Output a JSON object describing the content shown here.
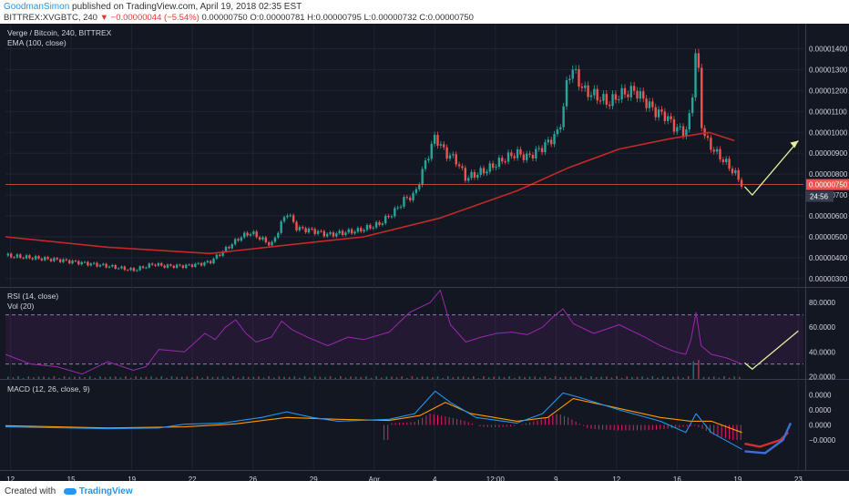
{
  "header": {
    "author": "GoodmanSimon",
    "published": "published on TradingView.com, April 19, 2018 02:35 EST",
    "symbol_line": "BITTREX:XVGBTC, 240",
    "change_text": "−0.00000044 (−5.54%)",
    "price": "0.00000750",
    "ohlc": "O:0.00000781 H:0.00000795 L:0.00000732 C:0.00000750"
  },
  "footer": {
    "created_with": "Created with",
    "brand": "TradingView"
  },
  "colors": {
    "bg": "#131722",
    "up": "#26a69a",
    "down": "#ef5350",
    "ema": "#c62828",
    "rsi": "#9c27b0",
    "macd": "#2196f3",
    "signal": "#ff9800",
    "hist": "#e91e63",
    "annotation": "#e6ee9c"
  },
  "chart_data": [
    {
      "type": "candlestick",
      "title": "Verge / Bitcoin, 240, BITTREX",
      "indicator": "EMA (100, close)",
      "ylim": [
        2.6e-06,
        1.52e-05
      ],
      "y_ticks": [
        "0.00001400",
        "0.00001300",
        "0.00001200",
        "0.00001100",
        "0.00001000",
        "0.00000900",
        "0.00000800",
        "0.00000700",
        "0.00000600",
        "0.00000500",
        "0.00000400",
        "0.00000300"
      ],
      "y_tick_values": [
        1.4e-05,
        1.3e-05,
        1.2e-05,
        1.1e-05,
        1e-05,
        9e-06,
        8e-06,
        7e-06,
        6e-06,
        5e-06,
        4e-06,
        3e-06
      ],
      "last_price_label": "0.00000750",
      "last_price": 7.5e-06,
      "countdown": "24:56",
      "x_ticks": [
        "12",
        "15",
        "19",
        "22",
        "26",
        "29",
        "Apr",
        "4",
        "12:00",
        "9",
        "12",
        "16",
        "19",
        "23"
      ],
      "close_path": [
        [
          0,
          4.1e-06
        ],
        [
          20,
          3.9e-06
        ],
        [
          40,
          3.6e-06
        ],
        [
          50,
          3.4e-06
        ],
        [
          58,
          3.7e-06
        ],
        [
          62,
          3.6e-06
        ],
        [
          70,
          3.6e-06
        ],
        [
          76,
          3.7e-06
        ],
        [
          80,
          3.8e-06
        ],
        [
          86,
          4.4e-06
        ],
        [
          92,
          5e-06
        ],
        [
          96,
          5.2e-06
        ],
        [
          100,
          4.9e-06
        ],
        [
          104,
          4.6e-06
        ],
        [
          110,
          6.2e-06
        ],
        [
          114,
          5.4e-06
        ],
        [
          120,
          5.3e-06
        ],
        [
          126,
          5.1e-06
        ],
        [
          132,
          5.2e-06
        ],
        [
          138,
          5.3e-06
        ],
        [
          146,
          5.6e-06
        ],
        [
          152,
          6.2e-06
        ],
        [
          156,
          6.8e-06
        ],
        [
          160,
          7e-06
        ],
        [
          164,
          8.5e-06
        ],
        [
          168,
          9.8e-06
        ],
        [
          172,
          9e-06
        ],
        [
          176,
          8.7e-06
        ],
        [
          180,
          7.8e-06
        ],
        [
          184,
          8e-06
        ],
        [
          188,
          8.2e-06
        ],
        [
          192,
          8.5e-06
        ],
        [
          196,
          8.8e-06
        ],
        [
          200,
          9e-06
        ],
        [
          204,
          8.8e-06
        ],
        [
          208,
          9.1e-06
        ],
        [
          212,
          9.5e-06
        ],
        [
          216,
          1e-05
        ],
        [
          218,
          1.1e-05
        ],
        [
          220,
          1.28e-05
        ],
        [
          222,
          1.3e-05
        ],
        [
          226,
          1.2e-05
        ],
        [
          230,
          1.18e-05
        ],
        [
          236,
          1.14e-05
        ],
        [
          240,
          1.18e-05
        ],
        [
          246,
          1.2e-05
        ],
        [
          250,
          1.15e-05
        ],
        [
          254,
          1.1e-05
        ],
        [
          258,
          1.08e-05
        ],
        [
          262,
          1.02e-05
        ],
        [
          266,
          1e-05
        ],
        [
          268,
          1.1e-05
        ],
        [
          270,
          1.41e-05
        ],
        [
          271,
          1.28e-05
        ],
        [
          272,
          1.05e-05
        ],
        [
          274,
          9.6e-06
        ],
        [
          278,
          9e-06
        ],
        [
          282,
          8.5e-06
        ],
        [
          286,
          7.9e-06
        ],
        [
          288,
          7.5e-06
        ]
      ],
      "ema": [
        [
          0,
          5e-06
        ],
        [
          40,
          4.5e-06
        ],
        [
          80,
          4.2e-06
        ],
        [
          110,
          4.6e-06
        ],
        [
          140,
          5e-06
        ],
        [
          170,
          5.9e-06
        ],
        [
          200,
          7.2e-06
        ],
        [
          220,
          8.3e-06
        ],
        [
          240,
          9.2e-06
        ],
        [
          260,
          9.7e-06
        ],
        [
          275,
          1e-05
        ],
        [
          285,
          9.6e-06
        ]
      ],
      "annotation_path": [
        [
          289,
          7.4e-06
        ],
        [
          292,
          7e-06
        ],
        [
          310,
          9.6e-06
        ]
      ]
    },
    {
      "type": "line",
      "title": "RSI (14, close)",
      "subtitle": "Vol (20)",
      "ylim": [
        18,
        92
      ],
      "y_ticks": [
        "80.0000",
        "60.0000",
        "40.0000",
        "20.0000"
      ],
      "y_tick_values": [
        80,
        60,
        40,
        20
      ],
      "bands": [
        70,
        30
      ],
      "rsi": [
        [
          0,
          38
        ],
        [
          10,
          30
        ],
        [
          20,
          28
        ],
        [
          30,
          22
        ],
        [
          40,
          32
        ],
        [
          50,
          25
        ],
        [
          55,
          28
        ],
        [
          60,
          42
        ],
        [
          70,
          40
        ],
        [
          78,
          55
        ],
        [
          82,
          50
        ],
        [
          86,
          60
        ],
        [
          90,
          66
        ],
        [
          94,
          55
        ],
        [
          98,
          48
        ],
        [
          104,
          52
        ],
        [
          108,
          65
        ],
        [
          112,
          58
        ],
        [
          118,
          52
        ],
        [
          126,
          45
        ],
        [
          134,
          52
        ],
        [
          140,
          50
        ],
        [
          150,
          56
        ],
        [
          158,
          72
        ],
        [
          166,
          80
        ],
        [
          170,
          90
        ],
        [
          174,
          62
        ],
        [
          180,
          48
        ],
        [
          186,
          52
        ],
        [
          192,
          55
        ],
        [
          198,
          56
        ],
        [
          204,
          54
        ],
        [
          210,
          60
        ],
        [
          214,
          68
        ],
        [
          218,
          75
        ],
        [
          222,
          63
        ],
        [
          230,
          55
        ],
        [
          240,
          62
        ],
        [
          250,
          52
        ],
        [
          256,
          45
        ],
        [
          262,
          40
        ],
        [
          266,
          38
        ],
        [
          268,
          50
        ],
        [
          270,
          72
        ],
        [
          272,
          45
        ],
        [
          276,
          38
        ],
        [
          282,
          35
        ],
        [
          288,
          30
        ]
      ],
      "annotation_path": [
        [
          289,
          31
        ],
        [
          292,
          26
        ],
        [
          310,
          57
        ]
      ]
    },
    {
      "type": "line",
      "title": "MACD (12, 26, close, 9)",
      "ylim": [
        -1.2e-06,
        1.2e-06
      ],
      "y_ticks": [
        "0.0000",
        "0.0000",
        "0.0000",
        "−0.0000"
      ],
      "y_tick_values": [
        8e-07,
        4e-07,
        0,
        -4e-07
      ],
      "macd": [
        [
          0,
          -5e-08
        ],
        [
          40,
          -1e-07
        ],
        [
          60,
          -8e-08
        ],
        [
          70,
          2e-08
        ],
        [
          85,
          5e-08
        ],
        [
          100,
          2e-07
        ],
        [
          110,
          3.5e-07
        ],
        [
          120,
          2e-07
        ],
        [
          130,
          1e-07
        ],
        [
          150,
          1.5e-07
        ],
        [
          160,
          3e-07
        ],
        [
          168,
          9e-07
        ],
        [
          174,
          6e-07
        ],
        [
          184,
          2e-07
        ],
        [
          200,
          5e-08
        ],
        [
          210,
          3e-07
        ],
        [
          218,
          8.5e-07
        ],
        [
          226,
          7e-07
        ],
        [
          240,
          4e-07
        ],
        [
          256,
          1e-07
        ],
        [
          266,
          -2e-07
        ],
        [
          270,
          3e-07
        ],
        [
          276,
          -2e-07
        ],
        [
          288,
          -6.5e-07
        ]
      ],
      "signal": [
        [
          0,
          -2e-08
        ],
        [
          40,
          -8e-08
        ],
        [
          70,
          -5e-08
        ],
        [
          90,
          3e-08
        ],
        [
          110,
          2e-07
        ],
        [
          130,
          1.5e-07
        ],
        [
          150,
          1.2e-07
        ],
        [
          162,
          2.5e-07
        ],
        [
          172,
          6e-07
        ],
        [
          182,
          3e-07
        ],
        [
          200,
          1e-07
        ],
        [
          212,
          2e-07
        ],
        [
          222,
          7e-07
        ],
        [
          236,
          5e-07
        ],
        [
          256,
          2e-07
        ],
        [
          268,
          1e-07
        ],
        [
          276,
          1e-07
        ],
        [
          288,
          -2e-07
        ]
      ],
      "histogram": [
        [
          150,
          4e-08
        ],
        [
          160,
          8e-08
        ],
        [
          166,
          3e-07
        ],
        [
          170,
          2.5e-07
        ],
        [
          174,
          2e-07
        ],
        [
          180,
          1e-07
        ],
        [
          186,
          -5e-08
        ],
        [
          192,
          -6e-08
        ],
        [
          198,
          -4e-08
        ],
        [
          210,
          1.5e-07
        ],
        [
          216,
          3e-07
        ],
        [
          220,
          2e-07
        ],
        [
          228,
          -1e-07
        ],
        [
          240,
          -1.5e-07
        ],
        [
          252,
          -1.4e-07
        ],
        [
          262,
          -8e-08
        ],
        [
          270,
          -2e-08
        ],
        [
          278,
          -3e-07
        ],
        [
          284,
          -4e-07
        ],
        [
          288,
          -4e-07
        ]
      ],
      "curve_red": [
        [
          289,
          -5e-07
        ],
        [
          295,
          -5.8e-07
        ],
        [
          303,
          -4e-07
        ],
        [
          306,
          -2e-07
        ]
      ],
      "curve_blue": [
        [
          289,
          -7e-07
        ],
        [
          297,
          -7.5e-07
        ],
        [
          304,
          -4e-07
        ],
        [
          307,
          5e-08
        ]
      ]
    }
  ]
}
